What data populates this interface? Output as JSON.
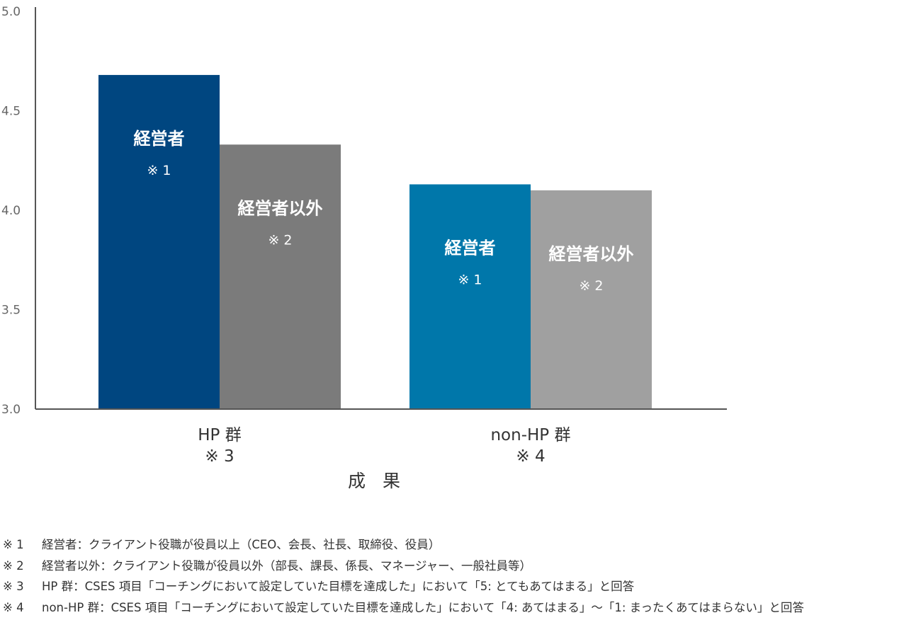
{
  "chart_data": {
    "type": "bar",
    "ylim": [
      3.0,
      5.0
    ],
    "yticks": [
      "3.0",
      "3.5",
      "4.0",
      "4.5",
      "5.0"
    ],
    "xlabel": "成 果",
    "grid": false,
    "categories": [
      {
        "name": "HP 群",
        "note": "※ 3"
      },
      {
        "name": "non-HP 群",
        "note": "※ 4"
      }
    ],
    "bars": [
      {
        "category": 0,
        "value": 4.68,
        "label": "経営者",
        "note": "※ 1",
        "color": "#004680"
      },
      {
        "category": 0,
        "value": 4.33,
        "label": "経営者以外",
        "note": "※ 2",
        "color": "#7b7b7b"
      },
      {
        "category": 1,
        "value": 4.13,
        "label": "経営者",
        "note": "※ 1",
        "color": "#0077aa"
      },
      {
        "category": 1,
        "value": 4.1,
        "label": "経営者以外",
        "note": "※ 2",
        "color": "#a0a0a0"
      }
    ]
  },
  "footnotes": [
    {
      "mark": "※ 1",
      "text": "経営者：クライアント役職が役員以上（CEO、会長、社長、取締役、役員）"
    },
    {
      "mark": "※ 2",
      "text": "経営者以外：クライアント役職が役員以外（部長、課長、係長、マネージャー、一般社員等）"
    },
    {
      "mark": "※ 3",
      "text": "HP 群：CSES 項目「コーチングにおいて設定していた目標を達成した」において「5: とてもあてはまる」と回答"
    },
    {
      "mark": "※ 4",
      "text": "non-HP 群：CSES 項目「コーチングにおいて設定していた目標を達成した」において「4: あてはまる」〜「1: まったくあてはまらない」と回答"
    }
  ]
}
